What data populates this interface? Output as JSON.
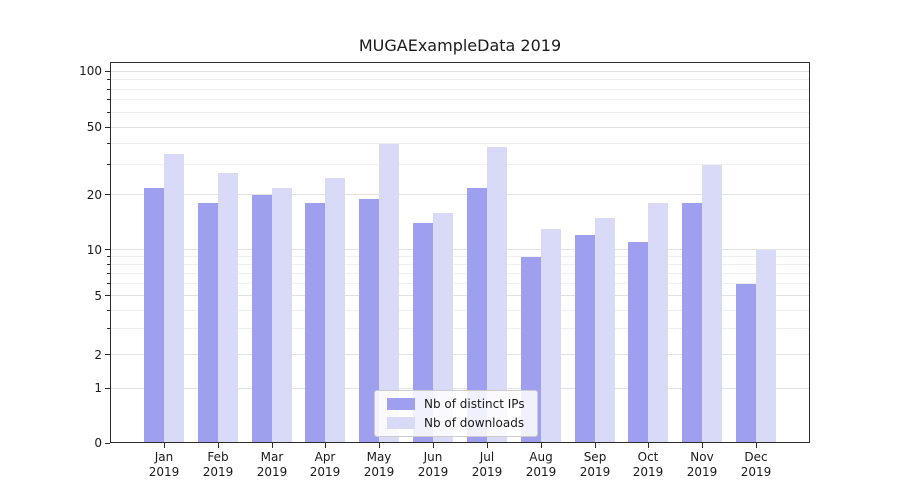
{
  "title": "MUGAExampleData 2019",
  "chart_data": {
    "type": "bar",
    "title": "MUGAExampleData 2019",
    "categories": [
      "Jan",
      "Feb",
      "Mar",
      "Apr",
      "May",
      "Jun",
      "Jul",
      "Aug",
      "Sep",
      "Oct",
      "Nov",
      "Dec"
    ],
    "year_label": "2019",
    "series": [
      {
        "name": "Nb of distinct IPs",
        "color": "#9f9ff0",
        "values": [
          22,
          18,
          20,
          18,
          19,
          14,
          22,
          9,
          12,
          11,
          18,
          6
        ]
      },
      {
        "name": "Nb of downloads",
        "color": "#d9d9f8",
        "values": [
          35,
          27,
          22,
          25,
          40,
          16,
          38,
          13,
          15,
          18,
          30,
          10
        ]
      }
    ],
    "yticks": [
      100,
      50,
      20,
      10,
      5,
      2,
      1,
      0
    ],
    "ylim": [
      0,
      100
    ],
    "yscale": "log-with-zero",
    "grid": true,
    "legend_position": "lower center",
    "colors": {
      "bar_distinct_ips": "#9f9ff0",
      "bar_downloads": "#d9d9f8",
      "grid_major": "#e2e2e2",
      "grid_minor": "#efefef",
      "axis": "#2b2b2b"
    }
  }
}
